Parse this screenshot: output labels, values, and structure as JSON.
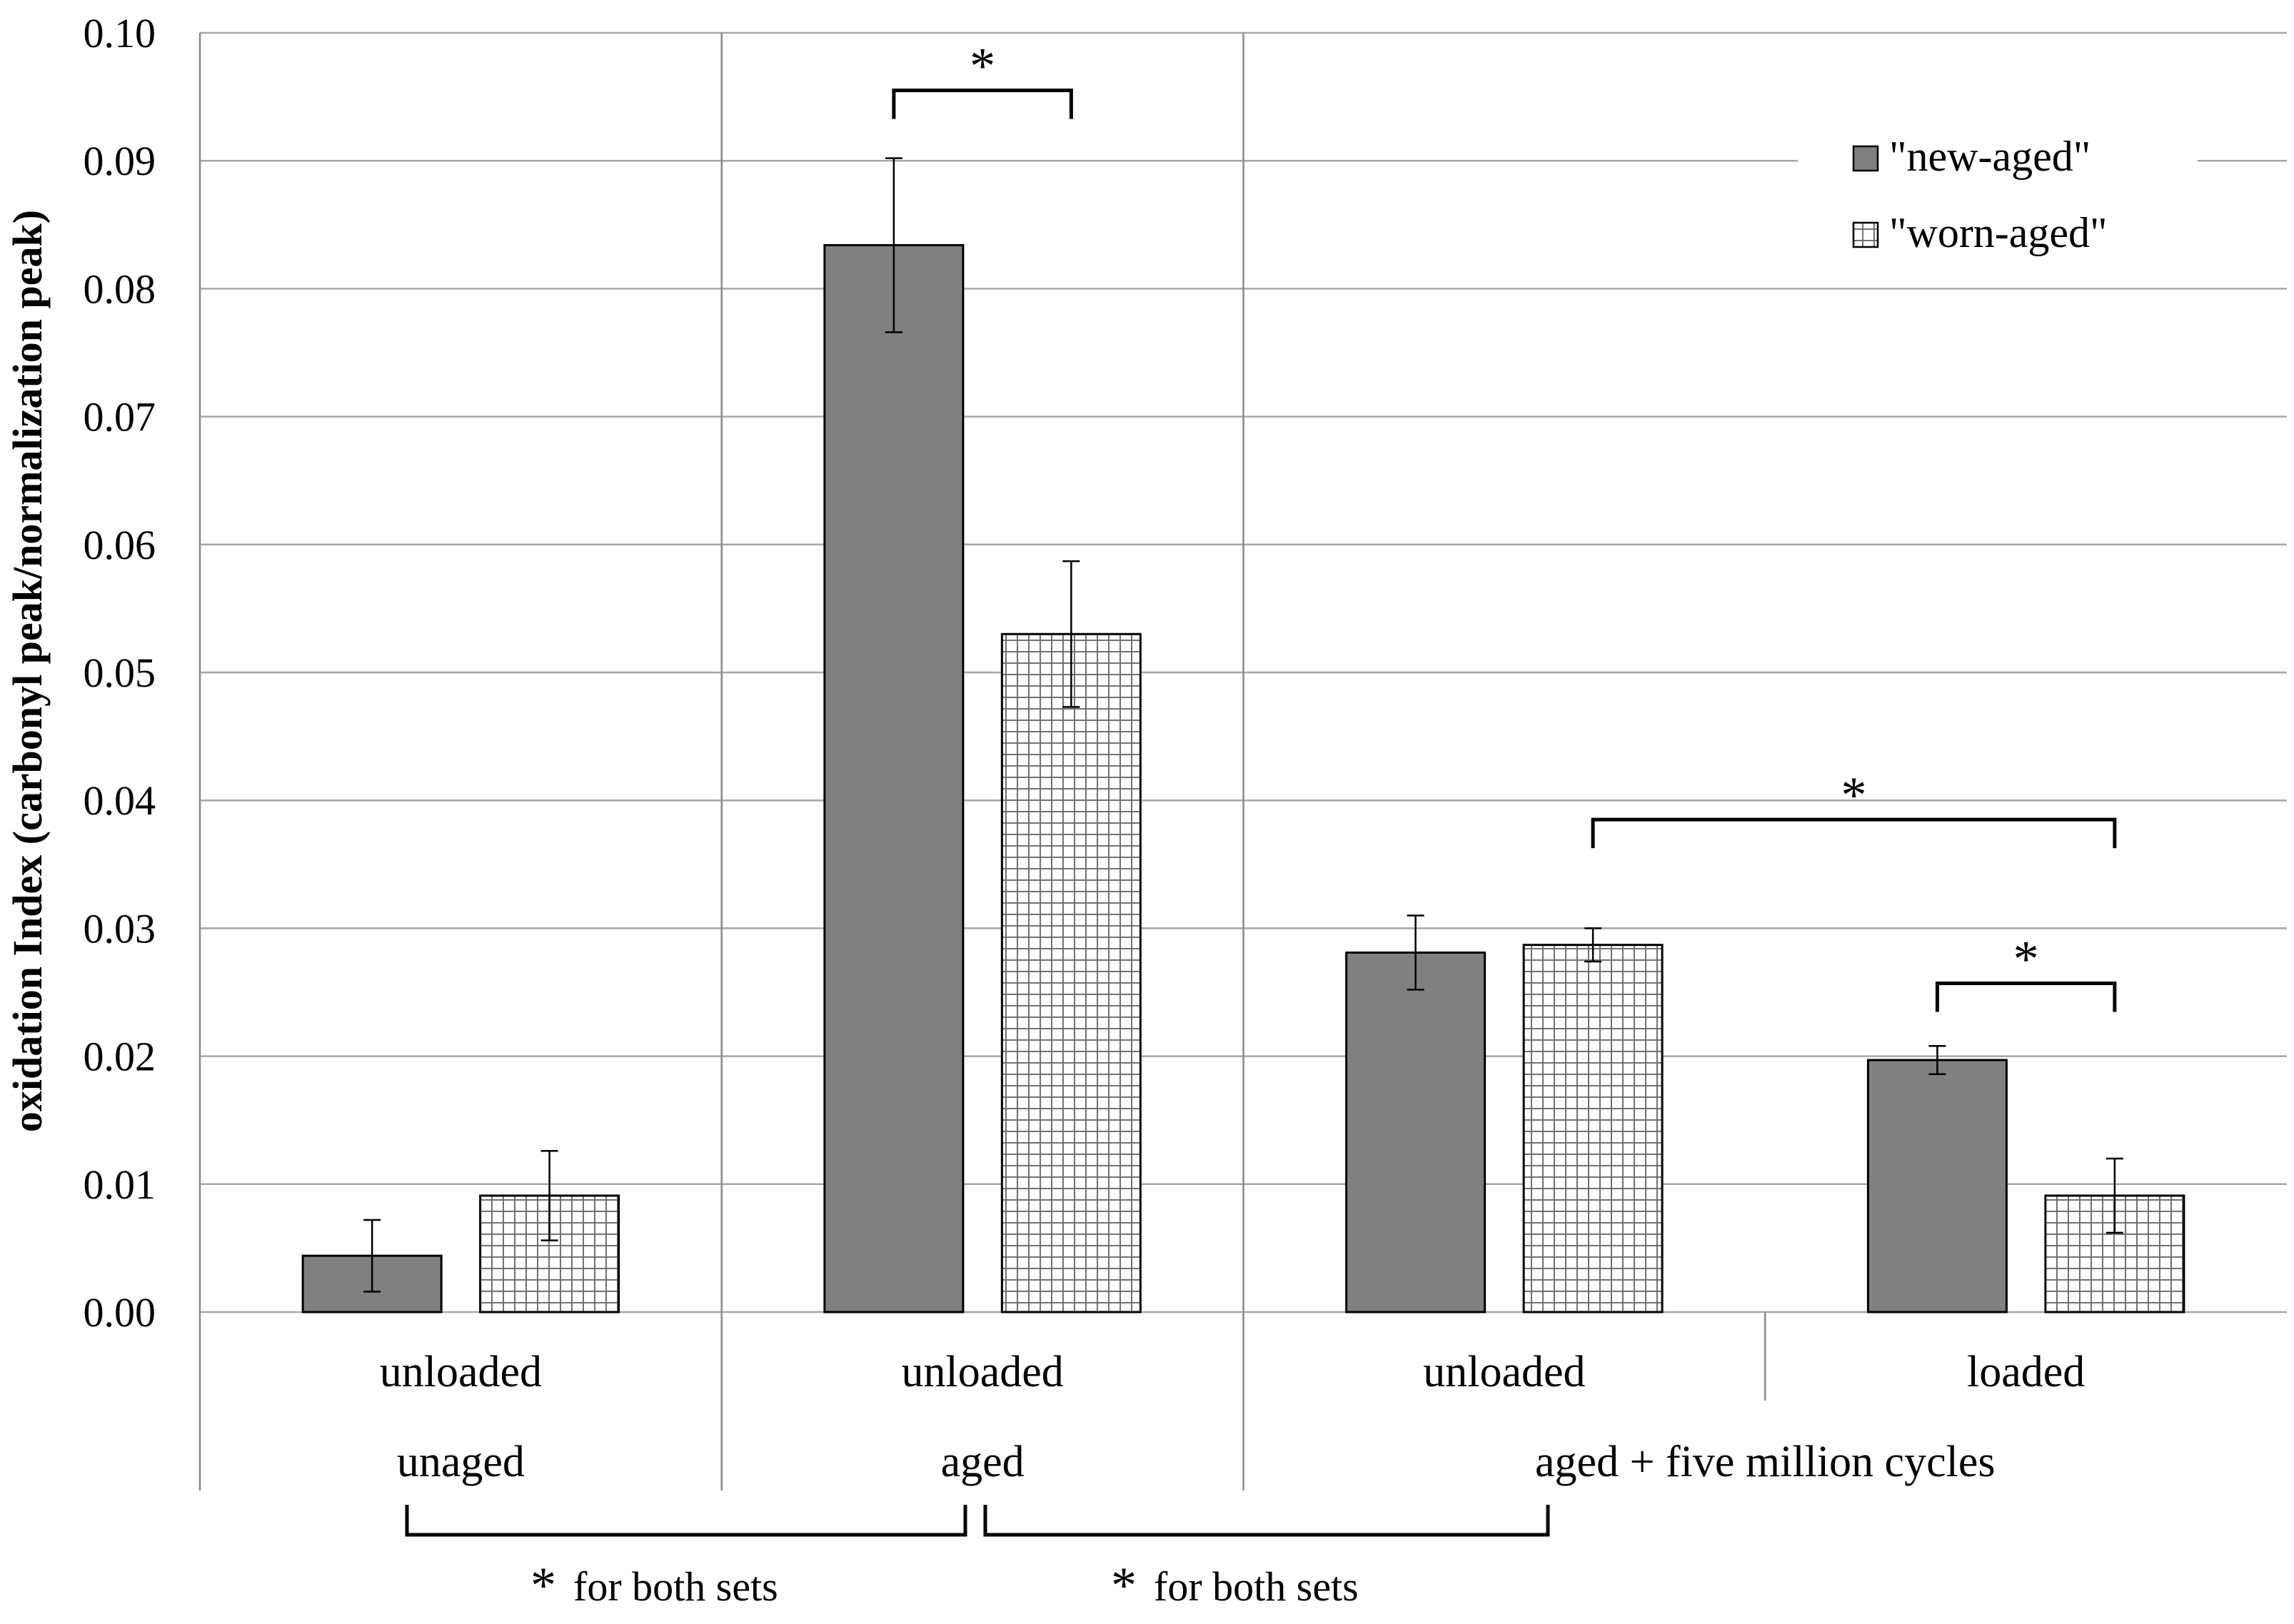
{
  "chart_data": {
    "type": "bar",
    "title": "",
    "xlabel": "",
    "ylabel": "oxidation Index (carbonyl peak/normalization peak)",
    "ylim": [
      0,
      0.1
    ],
    "yticks": [
      "0.00",
      "0.01",
      "0.02",
      "0.03",
      "0.04",
      "0.05",
      "0.06",
      "0.07",
      "0.08",
      "0.09",
      "0.10"
    ],
    "grid": true,
    "legend_position": "top-right",
    "categories": [
      "unloaded",
      "unloaded",
      "unloaded",
      "loaded"
    ],
    "groups": [
      {
        "label": "unaged",
        "categories": [
          0
        ]
      },
      {
        "label": "aged",
        "categories": [
          1
        ]
      },
      {
        "label": "aged + five million cycles",
        "categories": [
          2,
          3
        ]
      }
    ],
    "series": [
      {
        "name": "\"new-aged\"",
        "pattern": "solid",
        "color": "#808080",
        "values": [
          0.0044,
          0.0834,
          0.0281,
          0.0197
        ],
        "errors": [
          0.0028,
          0.0068,
          0.0029,
          0.0011
        ]
      },
      {
        "name": "\"worn-aged\"",
        "pattern": "grid",
        "color": "#ffffff",
        "values": [
          0.0091,
          0.053,
          0.0287,
          0.0091
        ],
        "errors": [
          0.0035,
          0.0057,
          0.0013,
          0.0029
        ]
      }
    ],
    "significance": [
      {
        "label": "*",
        "y": 0.0955,
        "from": [
          1,
          0
        ],
        "to": [
          1,
          1
        ]
      },
      {
        "label": "*",
        "y": 0.0385,
        "from": [
          2,
          1
        ],
        "to": [
          3,
          1
        ]
      },
      {
        "label": "*",
        "y": 0.0257,
        "from": [
          3,
          0
        ],
        "to": [
          3,
          1
        ]
      }
    ],
    "group_notes": [
      {
        "star": "*",
        "text": "for both sets",
        "from_group": 0,
        "to_group": 1
      },
      {
        "star": "*",
        "text": "for both sets",
        "from_group": 1,
        "to_group": 2
      }
    ],
    "colors": {
      "bar_dark": "#808080",
      "grid": "#a6a6a6",
      "axis": "#888888"
    }
  }
}
